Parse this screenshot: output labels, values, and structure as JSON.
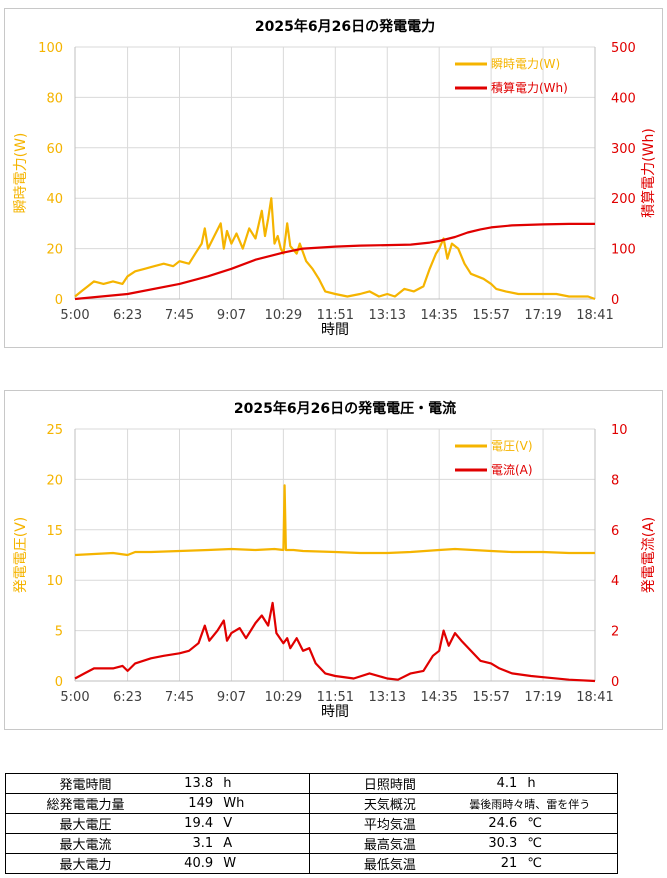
{
  "charts": {
    "power": {
      "title": "2025年6月26日の発電電力",
      "xlabel": "時間",
      "left_axis_label": "瞬時電力(W)",
      "right_axis_label": "積算電力(Wh)",
      "legend": [
        "瞬時電力(W)",
        "積算電力(Wh)"
      ]
    },
    "vi": {
      "title": "2025年6月26日の発電電圧・電流",
      "xlabel": "時間",
      "left_axis_label": "発電電圧(V)",
      "right_axis_label": "発電電流(A)",
      "legend": [
        "電圧(V)",
        "電流(A)"
      ]
    }
  },
  "chart_data": [
    {
      "type": "line",
      "title": "2025年6月26日の発電電力",
      "xlabel": "時間",
      "x_ticks": [
        "5:00",
        "6:23",
        "7:45",
        "9:07",
        "10:29",
        "11:51",
        "13:13",
        "14:35",
        "15:57",
        "17:19",
        "18:41"
      ],
      "x_range_minutes": [
        300,
        1121
      ],
      "ylim_left": [
        0,
        100
      ],
      "yticks_left": [
        0,
        20,
        40,
        60,
        80,
        100
      ],
      "ylim_right": [
        0,
        500
      ],
      "yticks_right": [
        0,
        100,
        200,
        300,
        400,
        500
      ],
      "grid": true,
      "legend_position": "top-right",
      "series": [
        {
          "name": "瞬時電力(W)",
          "axis": "left",
          "color": "#F5B400",
          "points": [
            [
              "5:00",
              1
            ],
            [
              "5:10",
              3
            ],
            [
              "5:20",
              5
            ],
            [
              "5:30",
              7
            ],
            [
              "5:45",
              6
            ],
            [
              "6:00",
              7
            ],
            [
              "6:15",
              6
            ],
            [
              "6:23",
              9
            ],
            [
              "6:35",
              11
            ],
            [
              "6:50",
              12
            ],
            [
              "7:05",
              13
            ],
            [
              "7:20",
              14
            ],
            [
              "7:35",
              13
            ],
            [
              "7:45",
              15
            ],
            [
              "8:00",
              14
            ],
            [
              "8:10",
              18
            ],
            [
              "8:20",
              22
            ],
            [
              "8:25",
              28
            ],
            [
              "8:30",
              20
            ],
            [
              "8:40",
              25
            ],
            [
              "8:50",
              30
            ],
            [
              "8:55",
              20
            ],
            [
              "9:00",
              27
            ],
            [
              "9:07",
              22
            ],
            [
              "9:15",
              26
            ],
            [
              "9:25",
              20
            ],
            [
              "9:35",
              28
            ],
            [
              "9:45",
              24
            ],
            [
              "9:55",
              35
            ],
            [
              "10:00",
              25
            ],
            [
              "10:05",
              32
            ],
            [
              "10:10",
              40
            ],
            [
              "10:15",
              22
            ],
            [
              "10:20",
              25
            ],
            [
              "10:25",
              20
            ],
            [
              "10:29",
              18
            ],
            [
              "10:35",
              30
            ],
            [
              "10:40",
              21
            ],
            [
              "10:50",
              18
            ],
            [
              "10:55",
              22
            ],
            [
              "11:05",
              15
            ],
            [
              "11:15",
              12
            ],
            [
              "11:25",
              8
            ],
            [
              "11:35",
              3
            ],
            [
              "11:51",
              2
            ],
            [
              "12:10",
              1
            ],
            [
              "12:30",
              2
            ],
            [
              "12:45",
              3
            ],
            [
              "13:00",
              1
            ],
            [
              "13:13",
              2
            ],
            [
              "13:25",
              1
            ],
            [
              "13:40",
              4
            ],
            [
              "13:55",
              3
            ],
            [
              "14:10",
              5
            ],
            [
              "14:20",
              12
            ],
            [
              "14:30",
              18
            ],
            [
              "14:35",
              20
            ],
            [
              "14:42",
              24
            ],
            [
              "14:48",
              16
            ],
            [
              "14:55",
              22
            ],
            [
              "15:05",
              20
            ],
            [
              "15:15",
              14
            ],
            [
              "15:25",
              10
            ],
            [
              "15:35",
              9
            ],
            [
              "15:45",
              8
            ],
            [
              "15:57",
              6
            ],
            [
              "16:05",
              4
            ],
            [
              "16:20",
              3
            ],
            [
              "16:40",
              2
            ],
            [
              "17:00",
              2
            ],
            [
              "17:19",
              2
            ],
            [
              "17:40",
              2
            ],
            [
              "18:00",
              1
            ],
            [
              "18:30",
              1
            ],
            [
              "18:41",
              0
            ]
          ]
        },
        {
          "name": "積算電力(Wh)",
          "axis": "right",
          "color": "#E00000",
          "points": [
            [
              "5:00",
              0
            ],
            [
              "6:23",
              10
            ],
            [
              "7:45",
              30
            ],
            [
              "8:30",
              45
            ],
            [
              "9:07",
              60
            ],
            [
              "9:45",
              78
            ],
            [
              "10:29",
              92
            ],
            [
              "11:00",
              100
            ],
            [
              "11:51",
              104
            ],
            [
              "12:30",
              106
            ],
            [
              "13:13",
              107
            ],
            [
              "13:50",
              108
            ],
            [
              "14:20",
              112
            ],
            [
              "14:35",
              115
            ],
            [
              "15:00",
              123
            ],
            [
              "15:20",
              132
            ],
            [
              "15:40",
              138
            ],
            [
              "15:57",
              142
            ],
            [
              "16:30",
              146
            ],
            [
              "17:19",
              148
            ],
            [
              "18:00",
              149
            ],
            [
              "18:41",
              149
            ]
          ]
        }
      ]
    },
    {
      "type": "line",
      "title": "2025年6月26日の発電電圧・電流",
      "xlabel": "時間",
      "x_ticks": [
        "5:00",
        "6:23",
        "7:45",
        "9:07",
        "10:29",
        "11:51",
        "13:13",
        "14:35",
        "15:57",
        "17:19",
        "18:41"
      ],
      "x_range_minutes": [
        300,
        1121
      ],
      "ylim_left": [
        0,
        25
      ],
      "yticks_left": [
        0,
        5,
        10,
        15,
        20,
        25
      ],
      "ylim_right": [
        0,
        10
      ],
      "yticks_right": [
        0,
        2,
        4,
        6,
        8,
        10
      ],
      "grid": true,
      "legend_position": "top-right",
      "series": [
        {
          "name": "電圧(V)",
          "axis": "left",
          "color": "#F5B400",
          "points": [
            [
              "5:00",
              12.5
            ],
            [
              "5:30",
              12.6
            ],
            [
              "6:00",
              12.7
            ],
            [
              "6:23",
              12.5
            ],
            [
              "6:35",
              12.8
            ],
            [
              "7:00",
              12.8
            ],
            [
              "7:45",
              12.9
            ],
            [
              "8:30",
              13.0
            ],
            [
              "9:07",
              13.1
            ],
            [
              "9:45",
              13.0
            ],
            [
              "10:15",
              13.1
            ],
            [
              "10:29",
              13.0
            ],
            [
              "10:31",
              19.4
            ],
            [
              "10:33",
              13.0
            ],
            [
              "10:45",
              13.0
            ],
            [
              "11:00",
              12.9
            ],
            [
              "11:51",
              12.8
            ],
            [
              "12:30",
              12.7
            ],
            [
              "13:13",
              12.7
            ],
            [
              "13:50",
              12.8
            ],
            [
              "14:35",
              13.0
            ],
            [
              "15:00",
              13.1
            ],
            [
              "15:57",
              12.9
            ],
            [
              "16:30",
              12.8
            ],
            [
              "17:19",
              12.8
            ],
            [
              "18:00",
              12.7
            ],
            [
              "18:41",
              12.7
            ]
          ]
        },
        {
          "name": "電流(A)",
          "axis": "right",
          "color": "#E00000",
          "points": [
            [
              "5:00",
              0.1
            ],
            [
              "5:15",
              0.3
            ],
            [
              "5:30",
              0.5
            ],
            [
              "6:00",
              0.5
            ],
            [
              "6:15",
              0.6
            ],
            [
              "6:23",
              0.4
            ],
            [
              "6:35",
              0.7
            ],
            [
              "7:00",
              0.9
            ],
            [
              "7:20",
              1.0
            ],
            [
              "7:45",
              1.1
            ],
            [
              "8:00",
              1.2
            ],
            [
              "8:15",
              1.5
            ],
            [
              "8:25",
              2.2
            ],
            [
              "8:32",
              1.6
            ],
            [
              "8:45",
              2.0
            ],
            [
              "8:55",
              2.4
            ],
            [
              "9:00",
              1.6
            ],
            [
              "9:07",
              1.9
            ],
            [
              "9:20",
              2.1
            ],
            [
              "9:30",
              1.7
            ],
            [
              "9:45",
              2.3
            ],
            [
              "9:55",
              2.6
            ],
            [
              "10:05",
              2.2
            ],
            [
              "10:12",
              3.1
            ],
            [
              "10:18",
              1.9
            ],
            [
              "10:29",
              1.5
            ],
            [
              "10:35",
              1.7
            ],
            [
              "10:40",
              1.3
            ],
            [
              "10:50",
              1.7
            ],
            [
              "11:00",
              1.2
            ],
            [
              "11:10",
              1.3
            ],
            [
              "11:20",
              0.7
            ],
            [
              "11:35",
              0.3
            ],
            [
              "11:51",
              0.2
            ],
            [
              "12:20",
              0.1
            ],
            [
              "12:45",
              0.3
            ],
            [
              "13:13",
              0.1
            ],
            [
              "13:30",
              0.05
            ],
            [
              "13:50",
              0.3
            ],
            [
              "14:10",
              0.4
            ],
            [
              "14:25",
              1.0
            ],
            [
              "14:35",
              1.2
            ],
            [
              "14:42",
              2.0
            ],
            [
              "14:50",
              1.4
            ],
            [
              "15:00",
              1.9
            ],
            [
              "15:10",
              1.6
            ],
            [
              "15:25",
              1.2
            ],
            [
              "15:40",
              0.8
            ],
            [
              "15:57",
              0.7
            ],
            [
              "16:10",
              0.5
            ],
            [
              "16:30",
              0.3
            ],
            [
              "17:00",
              0.2
            ],
            [
              "17:19",
              0.15
            ],
            [
              "18:00",
              0.05
            ],
            [
              "18:41",
              0
            ]
          ]
        }
      ]
    }
  ],
  "stats": {
    "rows": [
      {
        "l_label": "発電時間",
        "l_num": "13.8",
        "l_unit": "h",
        "r_label": "日照時間",
        "r_num": "4.1",
        "r_unit": "h"
      },
      {
        "l_label": "総発電電力量",
        "l_num": "149",
        "l_unit": "Wh",
        "r_label": "天気概況",
        "r_num": "曇後雨時々晴、雷を伴う",
        "r_unit": ""
      },
      {
        "l_label": "最大電圧",
        "l_num": "19.4",
        "l_unit": "V",
        "r_label": "平均気温",
        "r_num": "24.6",
        "r_unit": "℃"
      },
      {
        "l_label": "最大電流",
        "l_num": "3.1",
        "l_unit": "A",
        "r_label": "最高気温",
        "r_num": "30.3",
        "r_unit": "℃"
      },
      {
        "l_label": "最大電力",
        "l_num": "40.9",
        "l_unit": "W",
        "r_label": "最低気温",
        "r_num": "21",
        "r_unit": "℃"
      }
    ]
  },
  "colors": {
    "primary": "#F5B400",
    "secondary": "#E00000",
    "grid": "#d9d9d9",
    "axis_text": "#404040"
  }
}
